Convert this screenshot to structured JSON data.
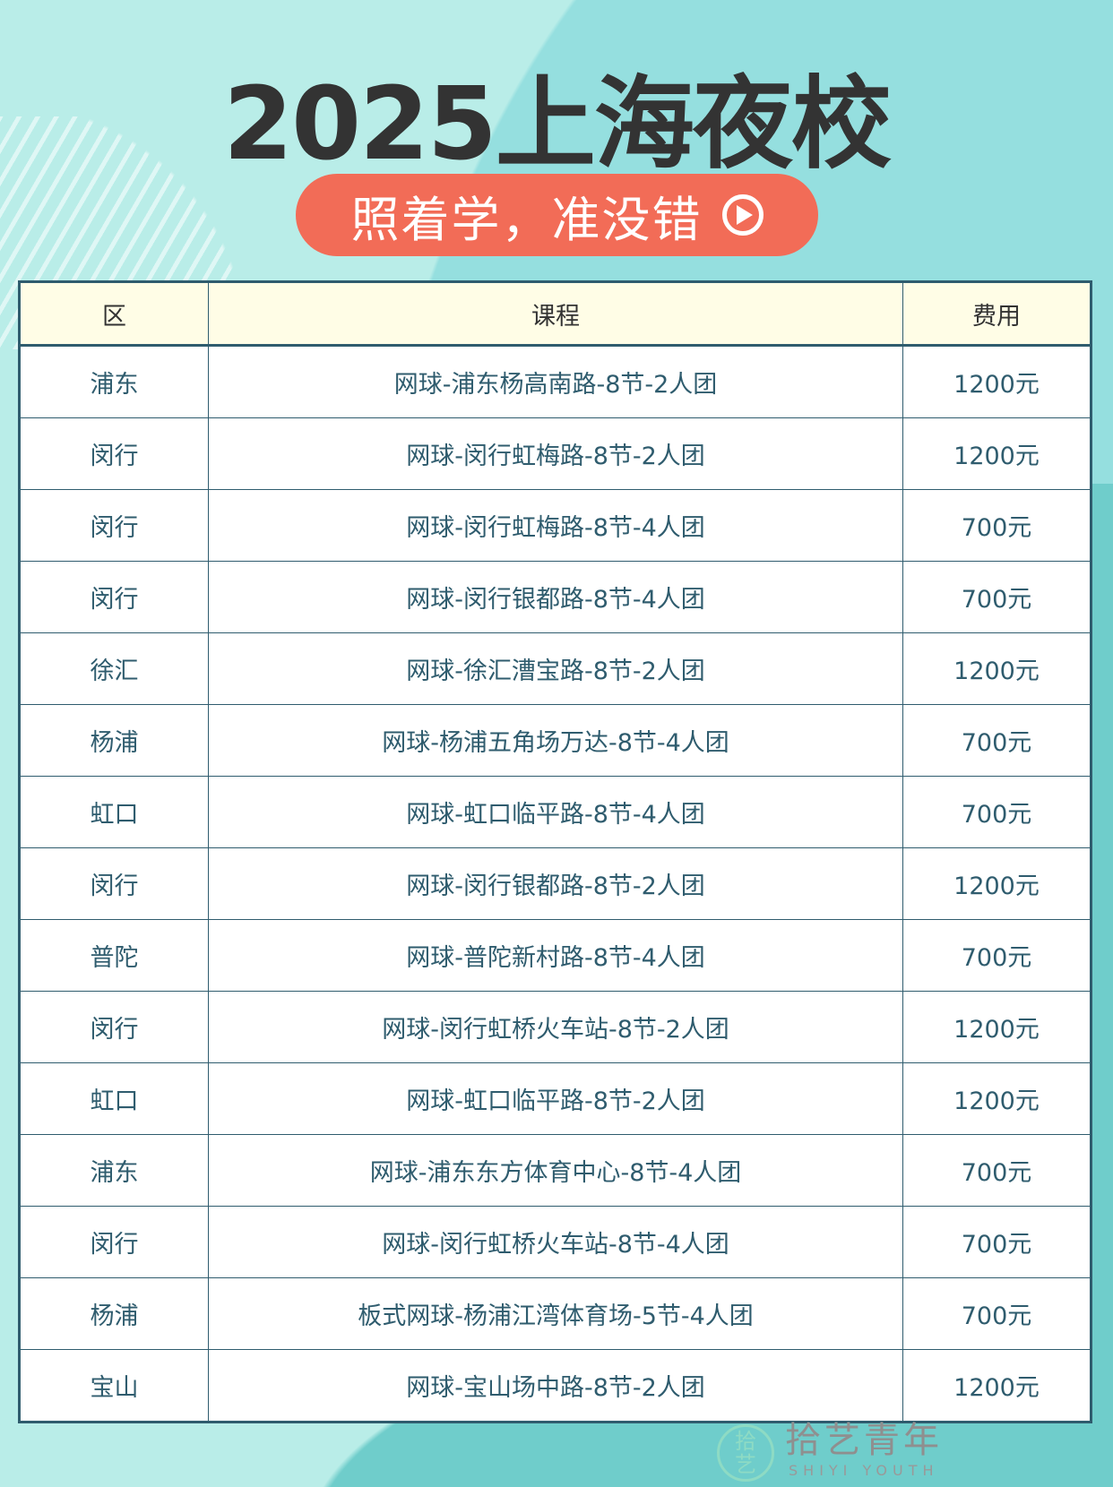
{
  "header": {
    "title": "2025上海夜校",
    "slogan": "照着学，准没错",
    "slogan_icon": "play-circle-icon"
  },
  "table": {
    "columns": [
      "区",
      "课程",
      "费用"
    ],
    "rows": [
      [
        "浦东",
        "网球-浦东杨高南路-8节-2人团",
        "1200元"
      ],
      [
        "闵行",
        "网球-闵行虹梅路-8节-2人团",
        "1200元"
      ],
      [
        "闵行",
        "网球-闵行虹梅路-8节-4人团",
        "700元"
      ],
      [
        "闵行",
        "网球-闵行银都路-8节-4人团",
        "700元"
      ],
      [
        "徐汇",
        "网球-徐汇漕宝路-8节-2人团",
        "1200元"
      ],
      [
        "杨浦",
        "网球-杨浦五角场万达-8节-4人团",
        "700元"
      ],
      [
        "虹口",
        "网球-虹口临平路-8节-4人团",
        "700元"
      ],
      [
        "闵行",
        "网球-闵行银都路-8节-2人团",
        "1200元"
      ],
      [
        "普陀",
        "网球-普陀新村路-8节-4人团",
        "700元"
      ],
      [
        "闵行",
        "网球-闵行虹桥火车站-8节-2人团",
        "1200元"
      ],
      [
        "虹口",
        "网球-虹口临平路-8节-2人团",
        "1200元"
      ],
      [
        "浦东",
        "网球-浦东东方体育中心-8节-4人团",
        "700元"
      ],
      [
        "闵行",
        "网球-闵行虹桥火车站-8节-4人团",
        "700元"
      ],
      [
        "杨浦",
        "板式网球-杨浦江湾体育场-5节-4人团",
        "700元"
      ],
      [
        "宝山",
        "网球-宝山场中路-8节-2人团",
        "1200元"
      ]
    ]
  },
  "watermark": {
    "logo": "拾艺",
    "name": "拾艺青年",
    "sub": "SHIYI YOUTH"
  },
  "colors": {
    "accent": "#f26c57",
    "table_border": "#2f5c6e",
    "header_bg": "#fffde6",
    "background": "#b9ede8"
  }
}
